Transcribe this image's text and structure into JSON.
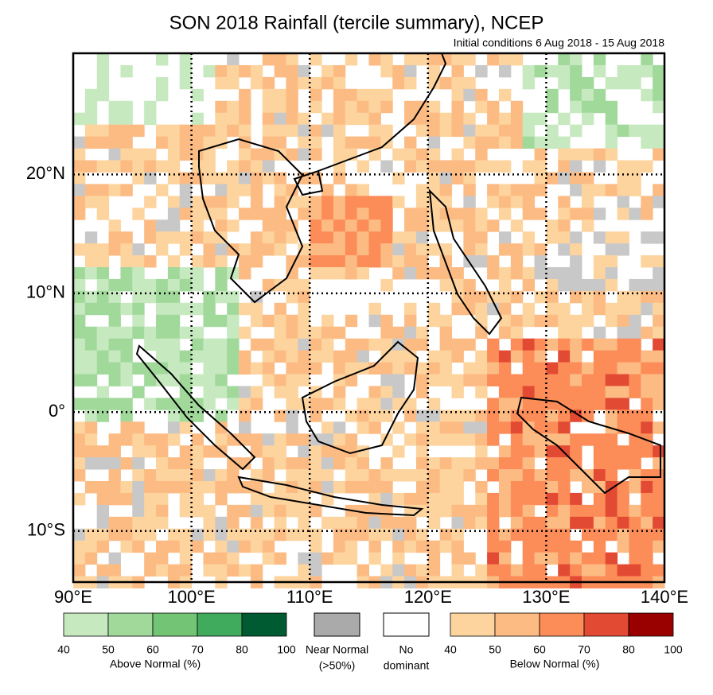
{
  "title": "SON 2018 Rainfall (tercile summary), NCEP",
  "subtitle": "Initial conditions 6 Aug 2018 - 15 Aug 2018",
  "map": {
    "xlim": [
      90,
      140
    ],
    "ylim": [
      -14.3,
      30.2
    ],
    "xticks": [
      {
        "value": 90,
        "label": "90°E"
      },
      {
        "value": 100,
        "label": "100°E"
      },
      {
        "value": 110,
        "label": "110°E"
      },
      {
        "value": 120,
        "label": "120°E"
      },
      {
        "value": 130,
        "label": "130°E"
      },
      {
        "value": 140,
        "label": "140°E"
      }
    ],
    "yticks": [
      {
        "value": 20,
        "label": "20°N"
      },
      {
        "value": 10,
        "label": "10°N"
      },
      {
        "value": 0,
        "label": "0°"
      },
      {
        "value": -10,
        "label": "10°S"
      }
    ]
  },
  "legend": {
    "above": {
      "label": "Above Normal (%)",
      "ticks": [
        40,
        50,
        60,
        70,
        80,
        100
      ],
      "colors": [
        "#c7e9c0",
        "#a1d99b",
        "#74c476",
        "#41ab5d",
        "#005a32"
      ]
    },
    "near": {
      "lines": [
        "Near Normal",
        "(>50%)"
      ],
      "color": "#aaaaaa"
    },
    "none": {
      "lines": [
        "No",
        "dominant"
      ],
      "color": "#ffffff"
    },
    "below": {
      "label": "Below Normal (%)",
      "ticks": [
        40,
        50,
        60,
        70,
        80,
        100
      ],
      "colors": [
        "#fdd49e",
        "#fdbb84",
        "#fc8d59",
        "#e34a33",
        "#990000"
      ]
    }
  }
}
